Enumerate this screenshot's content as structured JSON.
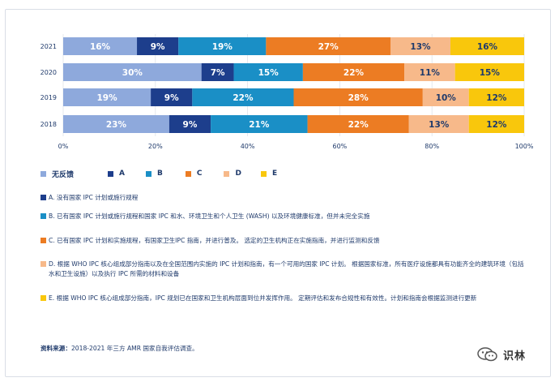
{
  "chart_data": {
    "type": "bar",
    "orientation": "horizontal",
    "stacked": true,
    "categories": [
      "2021",
      "2020",
      "2019",
      "2018"
    ],
    "series": [
      {
        "name": "无反馈",
        "color": "#8ea9dc",
        "values": [
          16,
          30,
          19,
          23
        ]
      },
      {
        "name": "A",
        "color": "#1d3e8c",
        "values": [
          9,
          7,
          9,
          9
        ]
      },
      {
        "name": "B",
        "color": "#1a8fc6",
        "values": [
          19,
          15,
          22,
          21
        ]
      },
      {
        "name": "C",
        "color": "#ec7c23",
        "values": [
          27,
          22,
          28,
          22
        ]
      },
      {
        "name": "D",
        "color": "#f7b98a",
        "values": [
          13,
          11,
          10,
          13
        ]
      },
      {
        "name": "E",
        "color": "#f9c70c",
        "values": [
          16,
          15,
          12,
          12
        ]
      }
    ],
    "x_ticks": [
      "0%",
      "20%",
      "40%",
      "60%",
      "80%",
      "100%"
    ],
    "xlim": [
      0,
      100
    ],
    "grid": true,
    "legend_position": "bottom-left"
  },
  "legend": [
    {
      "label": "无反馈",
      "color": "#8ea9dc"
    },
    {
      "label": "A",
      "color": "#1d3e8c"
    },
    {
      "label": "B",
      "color": "#1a8fc6"
    },
    {
      "label": "C",
      "color": "#ec7c23"
    },
    {
      "label": "D",
      "color": "#f7b98a"
    },
    {
      "label": "E",
      "color": "#f9c70c"
    }
  ],
  "notes": [
    {
      "color": "#1d3e8c",
      "text": "A.  没有国家 IPC 计划或施行规程"
    },
    {
      "color": "#1a8fc6",
      "text": "B.  已有国家 IPC 计划或施行规程和国家 IPC 和水、环境卫生和个人卫生 (WASH) 以及环境健康标准，但并未完全实施"
    },
    {
      "color": "#ec7c23",
      "text": "C.  已有国家 IPC 计划和实施规程，有国家卫生IPC 指南，并进行普及。 选定的卫生机构正在实施指南，并进行监测和反馈"
    },
    {
      "color": "#f7b98a",
      "text": "D.  根据 WHO IPC 核心组成部分指南以及在全国范围内实施的 IPC 计划和指南，有一个可用的国家 IPC 计划。 根据国家标准，所有医疗设施都具有功能齐全的建筑环境（包括水和卫生设施）以及执行 IPC 所需的材料和设备"
    },
    {
      "color": "#f9c70c",
      "text": "E.  根据 WHO IPC 核心组成部分指南，IPC 规划已在国家和卫生机构层面到位并发挥作用。 定期评估和发布合规性和有效性。计划和指南会根据监测进行更新"
    }
  ],
  "source": {
    "label": "资料来源：",
    "text": "2018-2021 年三方 AMR 国家自我评估调查。"
  },
  "watermark": {
    "text": "识林",
    "icon": "wechat-icon"
  }
}
